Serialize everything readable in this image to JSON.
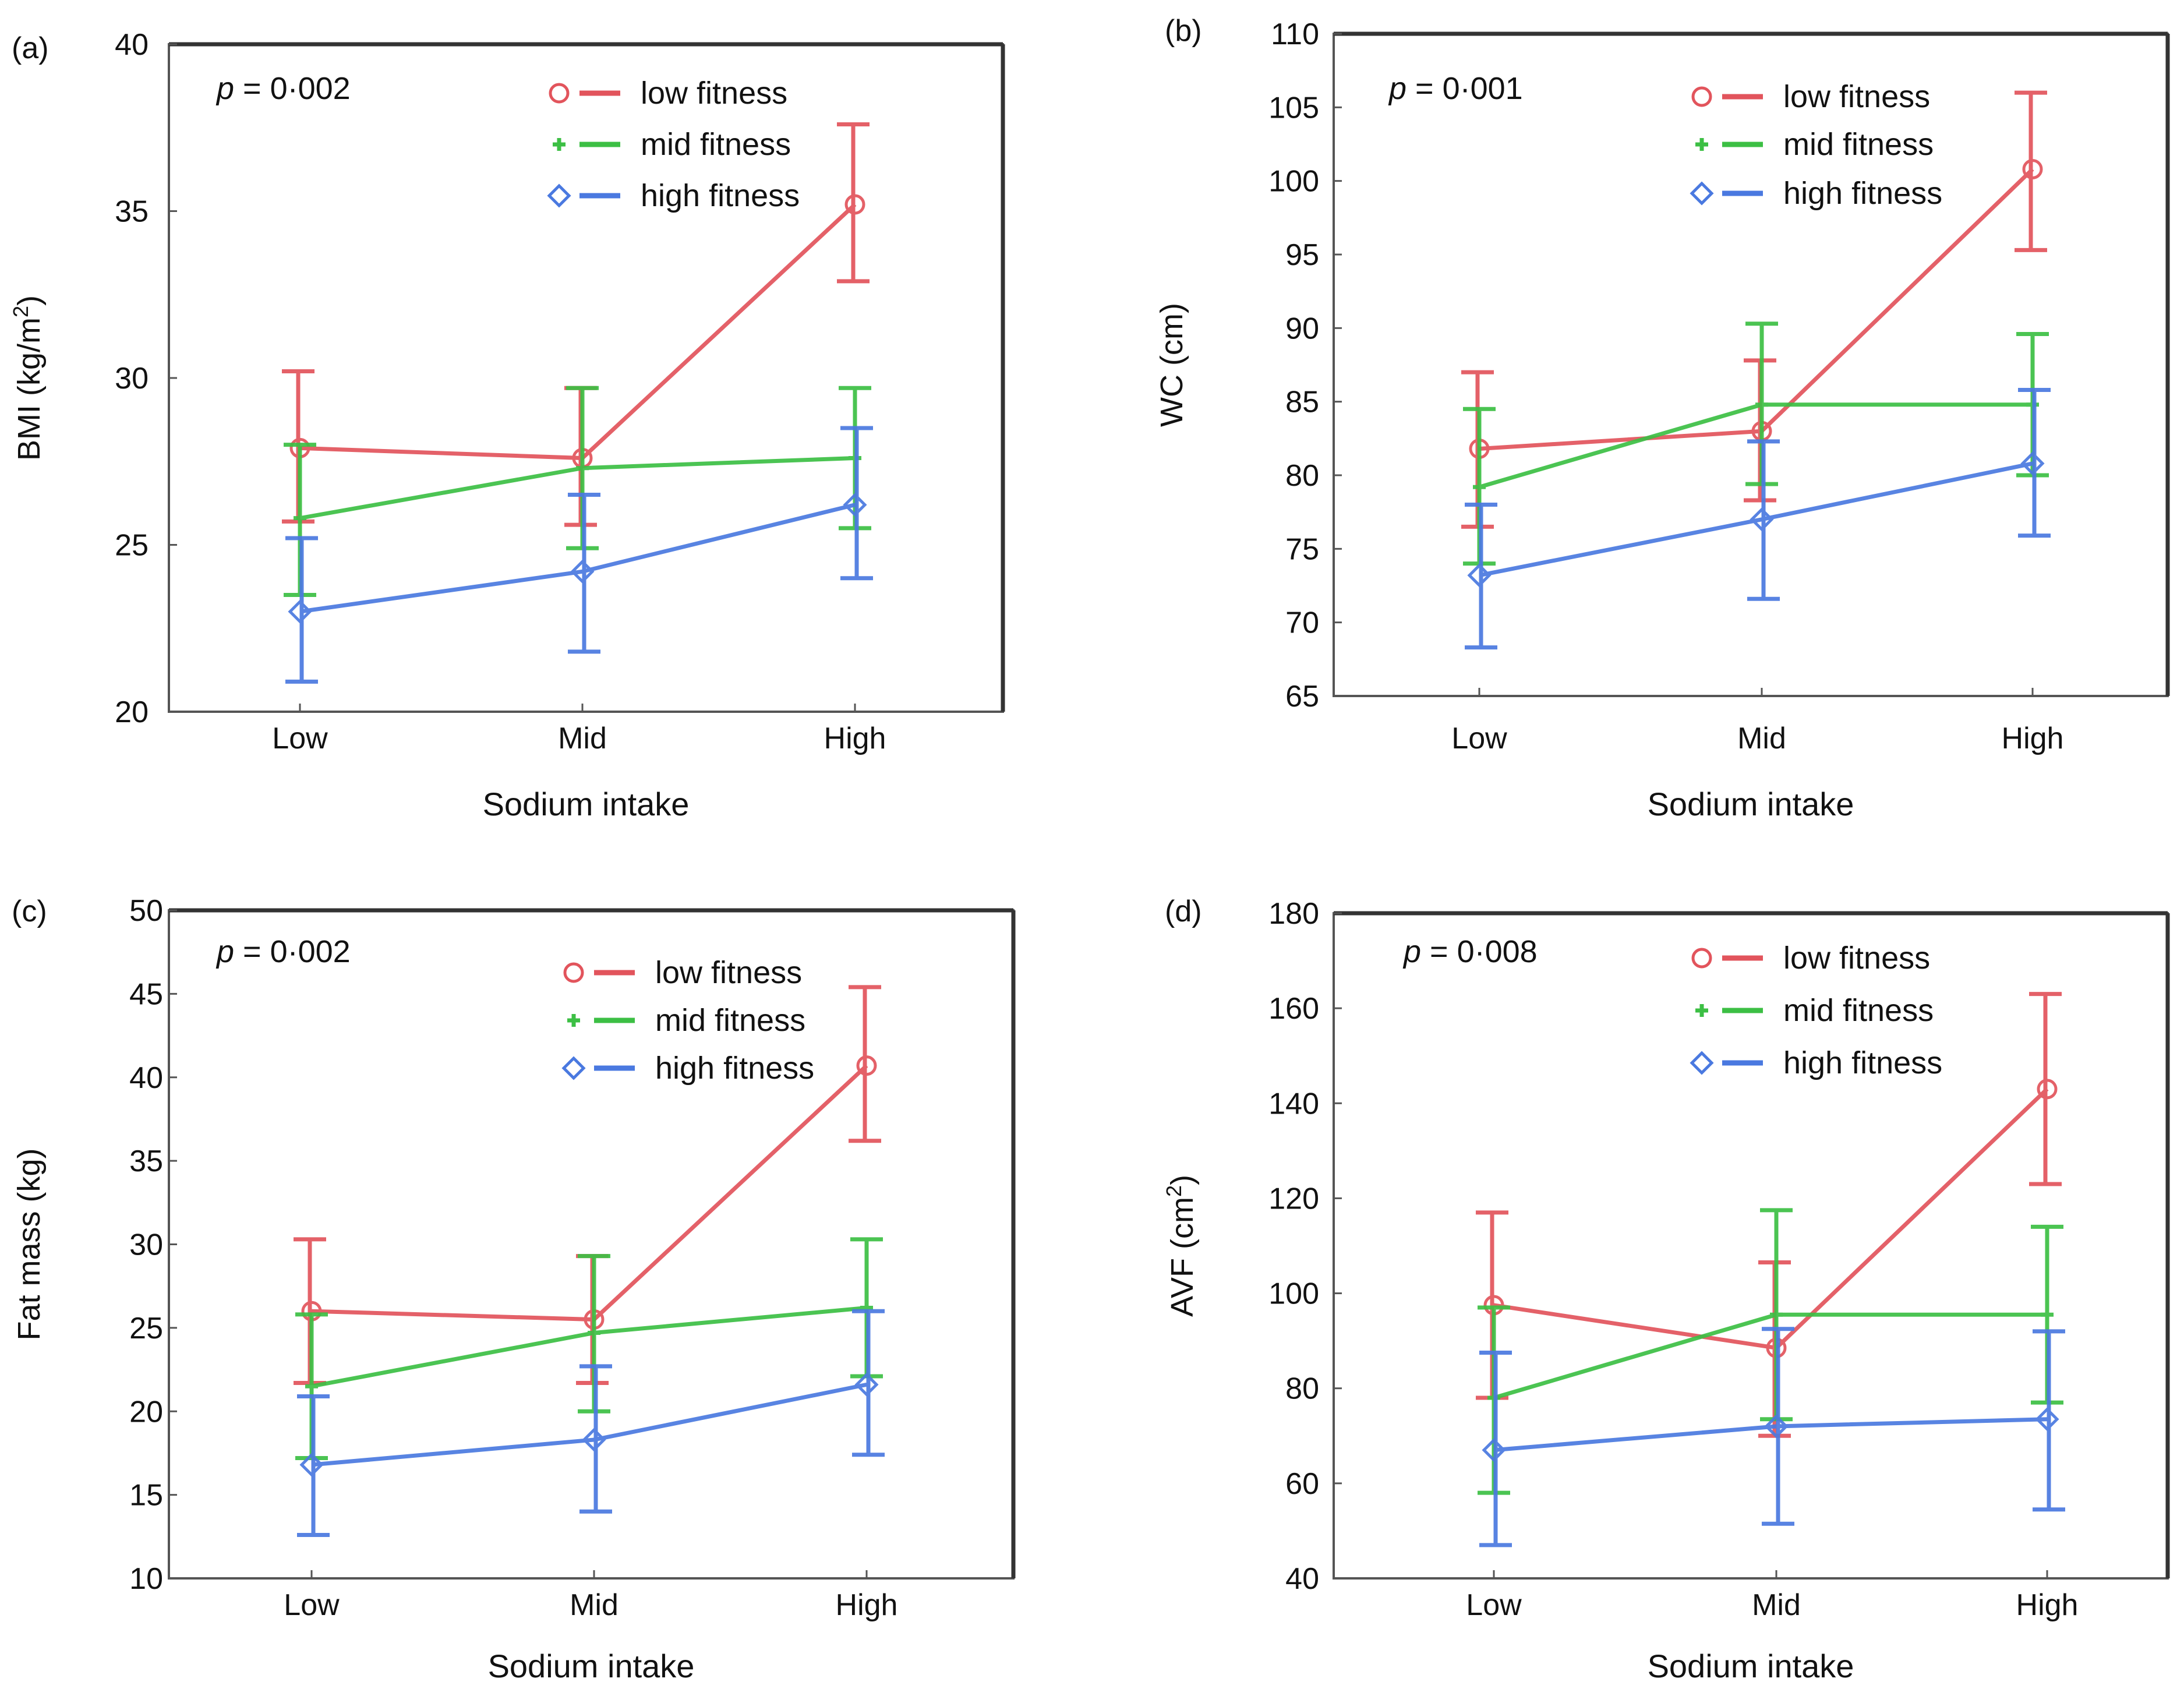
{
  "chart_data": [
    {
      "type": "line",
      "panel_label": "(a)",
      "p_symbol": "p",
      "p_value": " = 0·002",
      "xlabel": "Sodium intake",
      "ylabel": "BMI (kg/m",
      "ylabel_sup": "2",
      "ylabel_after": ")",
      "categories": [
        "Low",
        "Mid",
        "High"
      ],
      "ylim": [
        20,
        40
      ],
      "yticks": [
        20,
        25,
        30,
        35,
        40
      ],
      "series": [
        {
          "name": "low fitness",
          "marker": "circle",
          "color": "#e2545c",
          "values": [
            27.9,
            27.6,
            35.2
          ],
          "lower": [
            25.7,
            25.6,
            32.9
          ],
          "upper": [
            30.2,
            29.7,
            37.6
          ]
        },
        {
          "name": "mid fitness",
          "marker": "plus",
          "color": "#3cbf44",
          "values": [
            25.8,
            27.3,
            27.6
          ],
          "lower": [
            23.5,
            24.9,
            25.5
          ],
          "upper": [
            28.0,
            29.7,
            29.7
          ]
        },
        {
          "name": "high fitness",
          "marker": "diamond",
          "color": "#4a79e0",
          "values": [
            23.0,
            24.2,
            26.2
          ],
          "lower": [
            20.9,
            21.8,
            24.0
          ],
          "upper": [
            25.2,
            26.5,
            28.5
          ]
        }
      ]
    },
    {
      "type": "line",
      "panel_label": "(b)",
      "p_symbol": "p",
      "p_value": " = 0·001",
      "xlabel": "Sodium intake",
      "ylabel": "WC (cm)",
      "ylabel_sup": "",
      "ylabel_after": "",
      "categories": [
        "Low",
        "Mid",
        "High"
      ],
      "ylim": [
        65,
        110
      ],
      "yticks": [
        65,
        70,
        75,
        80,
        85,
        90,
        95,
        100,
        105,
        110
      ],
      "series": [
        {
          "name": "low fitness",
          "marker": "circle",
          "color": "#e2545c",
          "values": [
            81.8,
            83.0,
            100.8
          ],
          "lower": [
            76.5,
            78.3,
            95.3
          ],
          "upper": [
            87.0,
            87.8,
            106.0
          ]
        },
        {
          "name": "mid fitness",
          "marker": "plus",
          "color": "#3cbf44",
          "values": [
            79.2,
            84.8,
            84.8
          ],
          "lower": [
            74.0,
            79.4,
            80.0
          ],
          "upper": [
            84.5,
            90.3,
            89.6
          ]
        },
        {
          "name": "high fitness",
          "marker": "diamond",
          "color": "#4a79e0",
          "values": [
            73.2,
            77.0,
            80.8
          ],
          "lower": [
            68.3,
            71.6,
            75.9
          ],
          "upper": [
            78.0,
            82.3,
            85.8
          ]
        }
      ]
    },
    {
      "type": "line",
      "panel_label": "(c)",
      "p_symbol": "p",
      "p_value": " = 0·002",
      "xlabel": "Sodium intake",
      "ylabel": "Fat mass (kg)",
      "ylabel_sup": "",
      "ylabel_after": "",
      "categories": [
        "Low",
        "Mid",
        "High"
      ],
      "ylim": [
        10,
        50
      ],
      "yticks": [
        10,
        15,
        20,
        25,
        30,
        35,
        40,
        45,
        50
      ],
      "series": [
        {
          "name": "low fitness",
          "marker": "circle",
          "color": "#e2545c",
          "values": [
            26.0,
            25.5,
            40.7
          ],
          "lower": [
            21.7,
            21.7,
            36.2
          ],
          "upper": [
            30.3,
            29.3,
            45.4
          ]
        },
        {
          "name": "mid fitness",
          "marker": "plus",
          "color": "#3cbf44",
          "values": [
            21.5,
            24.7,
            26.2
          ],
          "lower": [
            17.2,
            20.0,
            22.1
          ],
          "upper": [
            25.8,
            29.3,
            30.3
          ]
        },
        {
          "name": "high fitness",
          "marker": "diamond",
          "color": "#4a79e0",
          "values": [
            16.8,
            18.3,
            21.6
          ],
          "lower": [
            12.6,
            14.0,
            17.4
          ],
          "upper": [
            20.9,
            22.7,
            26.0
          ]
        }
      ]
    },
    {
      "type": "line",
      "panel_label": "(d)",
      "p_symbol": "p",
      "p_value": " = 0·008",
      "xlabel": "Sodium intake",
      "ylabel": "AVF (cm",
      "ylabel_sup": "2",
      "ylabel_after": ")",
      "categories": [
        "Low",
        "Mid",
        "High"
      ],
      "ylim": [
        40,
        180
      ],
      "yticks": [
        40,
        60,
        80,
        100,
        120,
        140,
        160,
        180
      ],
      "series": [
        {
          "name": "low fitness",
          "marker": "circle",
          "color": "#e2545c",
          "values": [
            97.5,
            88.5,
            143.0
          ],
          "lower": [
            78.0,
            70.0,
            123.0
          ],
          "upper": [
            117.0,
            106.5,
            163.0
          ]
        },
        {
          "name": "mid fitness",
          "marker": "plus",
          "color": "#3cbf44",
          "values": [
            78.0,
            95.5,
            95.5
          ],
          "lower": [
            58.0,
            73.5,
            77.0
          ],
          "upper": [
            97.0,
            117.5,
            114.0
          ]
        },
        {
          "name": "high fitness",
          "marker": "diamond",
          "color": "#4a79e0",
          "values": [
            67.0,
            72.0,
            73.5
          ],
          "lower": [
            47.0,
            51.5,
            54.5
          ],
          "upper": [
            87.5,
            92.5,
            92.0
          ]
        }
      ]
    }
  ]
}
